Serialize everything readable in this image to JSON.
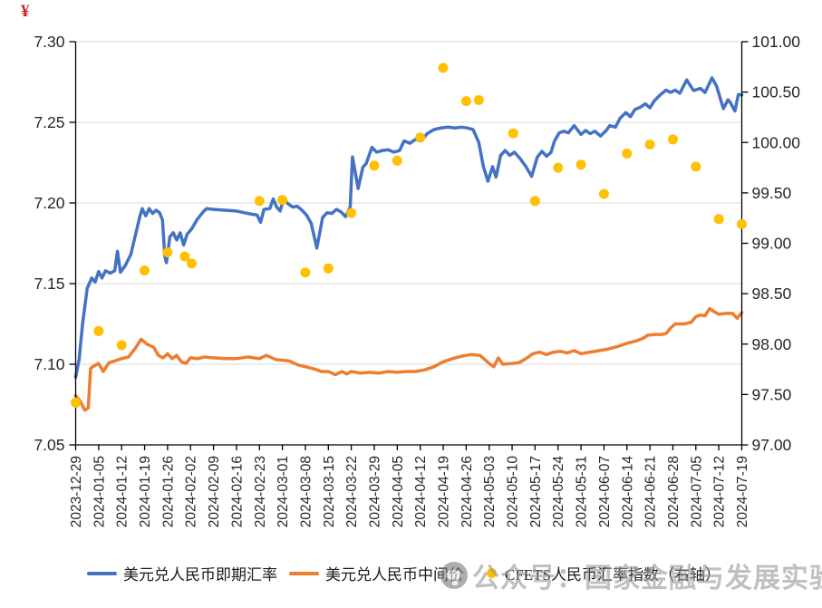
{
  "corner_mark": "¥",
  "watermark": {
    "text": "公众号：国家金融与发展实验室"
  },
  "legend": {
    "items": [
      {
        "label": "美元兑人民币即期汇率",
        "color": "#4472C4",
        "marker": "line"
      },
      {
        "label": "美元兑人民币中间价",
        "color": "#ED7D31",
        "marker": "line"
      },
      {
        "label": "CFETS人民币汇率指数（右轴）",
        "color": "#FFC000",
        "marker": "dot"
      }
    ]
  },
  "chart_data": {
    "type": "line",
    "title": "",
    "grid": true,
    "grid_color": "#d9d9d9",
    "legend_position": "bottom",
    "left_axis": {
      "min": 7.05,
      "max": 7.3,
      "ticks": [
        "7.30",
        "7.25",
        "7.20",
        "7.15",
        "7.10",
        "7.05"
      ]
    },
    "right_axis": {
      "min": 97.0,
      "max": 101.0,
      "ticks": [
        "101.00",
        "100.50",
        "100.00",
        "99.50",
        "99.00",
        "98.50",
        "98.00",
        "97.50",
        "97.00"
      ]
    },
    "x_labels": [
      "2023-12-29",
      "2024-01-05",
      "2024-01-12",
      "2024-01-19",
      "2024-01-26",
      "2024-02-02",
      "2024-02-09",
      "2024-02-16",
      "2024-02-23",
      "2024-03-01",
      "2024-03-08",
      "2024-03-15",
      "2024-03-22",
      "2024-03-29",
      "2024-04-05",
      "2024-04-12",
      "2024-04-19",
      "2024-04-26",
      "2024-05-03",
      "2024-05-10",
      "2024-05-17",
      "2024-05-24",
      "2024-05-31",
      "2024-06-07",
      "2024-06-14",
      "2024-06-21",
      "2024-06-28",
      "2024-07-05",
      "2024-07-12",
      "2024-07-19"
    ],
    "series": [
      {
        "name": "美元兑人民币即期汇率",
        "axis": "left",
        "type": "line",
        "color": "#4472C4",
        "points": [
          [
            0,
            7.092
          ],
          [
            0.15,
            7.103
          ],
          [
            0.3,
            7.125
          ],
          [
            0.5,
            7.147
          ],
          [
            0.7,
            7.1535
          ],
          [
            0.85,
            7.151
          ],
          [
            1,
            7.1575
          ],
          [
            1.15,
            7.1535
          ],
          [
            1.3,
            7.158
          ],
          [
            1.5,
            7.1565
          ],
          [
            1.7,
            7.158
          ],
          [
            1.82,
            7.17
          ],
          [
            1.95,
            7.157
          ],
          [
            2.15,
            7.161
          ],
          [
            2.4,
            7.168
          ],
          [
            2.6,
            7.18
          ],
          [
            2.8,
            7.192
          ],
          [
            2.9,
            7.1965
          ],
          [
            3.05,
            7.192
          ],
          [
            3.2,
            7.1965
          ],
          [
            3.35,
            7.1935
          ],
          [
            3.5,
            7.1955
          ],
          [
            3.65,
            7.194
          ],
          [
            3.78,
            7.1895
          ],
          [
            3.88,
            7.167
          ],
          [
            3.95,
            7.163
          ],
          [
            4.1,
            7.179
          ],
          [
            4.25,
            7.1815
          ],
          [
            4.4,
            7.177
          ],
          [
            4.55,
            7.1815
          ],
          [
            4.7,
            7.174
          ],
          [
            4.85,
            7.1805
          ],
          [
            5.05,
            7.184
          ],
          [
            5.3,
            7.19
          ],
          [
            5.55,
            7.1945
          ],
          [
            5.7,
            7.1965
          ],
          [
            6,
            7.196
          ],
          [
            6.5,
            7.1955
          ],
          [
            7,
            7.195
          ],
          [
            7.5,
            7.1935
          ],
          [
            7.9,
            7.1925
          ],
          [
            8.05,
            7.188
          ],
          [
            8.2,
            7.196
          ],
          [
            8.45,
            7.1965
          ],
          [
            8.6,
            7.2025
          ],
          [
            8.75,
            7.1975
          ],
          [
            8.9,
            7.195
          ],
          [
            9.05,
            7.2025
          ],
          [
            9.25,
            7.1995
          ],
          [
            9.45,
            7.1975
          ],
          [
            9.65,
            7.198
          ],
          [
            9.85,
            7.1955
          ],
          [
            10.05,
            7.1925
          ],
          [
            10.25,
            7.1875
          ],
          [
            10.5,
            7.172
          ],
          [
            10.75,
            7.191
          ],
          [
            10.95,
            7.194
          ],
          [
            11.15,
            7.1935
          ],
          [
            11.35,
            7.196
          ],
          [
            11.55,
            7.1945
          ],
          [
            11.75,
            7.1915
          ],
          [
            11.95,
            7.1975
          ],
          [
            12.05,
            7.2285
          ],
          [
            12.3,
            7.209
          ],
          [
            12.5,
            7.222
          ],
          [
            12.65,
            7.2245
          ],
          [
            12.9,
            7.2345
          ],
          [
            13.1,
            7.2315
          ],
          [
            13.35,
            7.2325
          ],
          [
            13.6,
            7.233
          ],
          [
            13.85,
            7.2315
          ],
          [
            14.1,
            7.2325
          ],
          [
            14.3,
            7.2385
          ],
          [
            14.55,
            7.237
          ],
          [
            14.8,
            7.2395
          ],
          [
            15.05,
            7.2385
          ],
          [
            15.3,
            7.243
          ],
          [
            15.6,
            7.2455
          ],
          [
            15.9,
            7.2465
          ],
          [
            16.2,
            7.247
          ],
          [
            16.5,
            7.2465
          ],
          [
            16.8,
            7.247
          ],
          [
            17.05,
            7.2465
          ],
          [
            17.3,
            7.2455
          ],
          [
            17.55,
            7.2375
          ],
          [
            17.75,
            7.2225
          ],
          [
            17.95,
            7.2135
          ],
          [
            18.15,
            7.2225
          ],
          [
            18.3,
            7.216
          ],
          [
            18.5,
            7.2295
          ],
          [
            18.7,
            7.2325
          ],
          [
            18.9,
            7.2295
          ],
          [
            19.1,
            7.2315
          ],
          [
            19.35,
            7.2275
          ],
          [
            19.6,
            7.2225
          ],
          [
            19.85,
            7.2165
          ],
          [
            20.1,
            7.2285
          ],
          [
            20.3,
            7.232
          ],
          [
            20.5,
            7.229
          ],
          [
            20.7,
            7.2315
          ],
          [
            20.85,
            7.2385
          ],
          [
            21.05,
            7.2435
          ],
          [
            21.25,
            7.2445
          ],
          [
            21.45,
            7.2435
          ],
          [
            21.7,
            7.248
          ],
          [
            22,
            7.2425
          ],
          [
            22.2,
            7.245
          ],
          [
            22.4,
            7.243
          ],
          [
            22.6,
            7.2445
          ],
          [
            22.85,
            7.2415
          ],
          [
            23.1,
            7.245
          ],
          [
            23.25,
            7.248
          ],
          [
            23.5,
            7.247
          ],
          [
            23.7,
            7.2525
          ],
          [
            23.95,
            7.256
          ],
          [
            24.15,
            7.2535
          ],
          [
            24.35,
            7.258
          ],
          [
            24.6,
            7.2595
          ],
          [
            24.8,
            7.2615
          ],
          [
            25,
            7.259
          ],
          [
            25.2,
            7.2635
          ],
          [
            25.45,
            7.267
          ],
          [
            25.7,
            7.27
          ],
          [
            25.9,
            7.2685
          ],
          [
            26.1,
            7.27
          ],
          [
            26.3,
            7.268
          ],
          [
            26.6,
            7.2763
          ],
          [
            26.9,
            7.2697
          ],
          [
            27.2,
            7.271
          ],
          [
            27.4,
            7.2685
          ],
          [
            27.7,
            7.2775
          ],
          [
            27.9,
            7.2725
          ],
          [
            28.2,
            7.2585
          ],
          [
            28.4,
            7.264
          ],
          [
            28.5,
            7.2623
          ],
          [
            28.7,
            7.257
          ],
          [
            28.85,
            7.2672
          ],
          [
            29,
            7.267
          ]
        ]
      },
      {
        "name": "美元兑人民币中间价",
        "axis": "left",
        "type": "line",
        "color": "#ED7D31",
        "points": [
          [
            0,
            7.0805
          ],
          [
            0.2,
            7.077
          ],
          [
            0.4,
            7.0715
          ],
          [
            0.55,
            7.073
          ],
          [
            0.65,
            7.0975
          ],
          [
            0.8,
            7.099
          ],
          [
            1,
            7.1005
          ],
          [
            1.2,
            7.0955
          ],
          [
            1.45,
            7.101
          ],
          [
            1.7,
            7.102
          ],
          [
            2,
            7.1035
          ],
          [
            2.3,
            7.1045
          ],
          [
            2.6,
            7.11
          ],
          [
            2.85,
            7.1155
          ],
          [
            3.1,
            7.1125
          ],
          [
            3.4,
            7.1105
          ],
          [
            3.6,
            7.1055
          ],
          [
            3.8,
            7.104
          ],
          [
            4,
            7.1065
          ],
          [
            4.2,
            7.1035
          ],
          [
            4.4,
            7.1055
          ],
          [
            4.6,
            7.1015
          ],
          [
            4.8,
            7.1005
          ],
          [
            5,
            7.104
          ],
          [
            5.3,
            7.1035
          ],
          [
            5.6,
            7.1045
          ],
          [
            6,
            7.104
          ],
          [
            6.5,
            7.1035
          ],
          [
            7,
            7.1035
          ],
          [
            7.5,
            7.1045
          ],
          [
            8,
            7.1035
          ],
          [
            8.3,
            7.1055
          ],
          [
            8.7,
            7.103
          ],
          [
            9,
            7.1025
          ],
          [
            9.3,
            7.102
          ],
          [
            9.7,
            7.0995
          ],
          [
            10,
            7.0985
          ],
          [
            10.4,
            7.097
          ],
          [
            10.7,
            7.0955
          ],
          [
            11,
            7.0955
          ],
          [
            11.3,
            7.0935
          ],
          [
            11.6,
            7.0955
          ],
          [
            11.8,
            7.094
          ],
          [
            12,
            7.0955
          ],
          [
            12.4,
            7.0945
          ],
          [
            12.8,
            7.095
          ],
          [
            13.2,
            7.0945
          ],
          [
            13.6,
            7.0955
          ],
          [
            14,
            7.095
          ],
          [
            14.4,
            7.0955
          ],
          [
            14.8,
            7.0955
          ],
          [
            15.2,
            7.0965
          ],
          [
            15.6,
            7.0985
          ],
          [
            16,
            7.1015
          ],
          [
            16.4,
            7.1035
          ],
          [
            16.8,
            7.105
          ],
          [
            17.2,
            7.106
          ],
          [
            17.6,
            7.1055
          ],
          [
            18,
            7.1005
          ],
          [
            18.2,
            7.0985
          ],
          [
            18.4,
            7.104
          ],
          [
            18.6,
            7.1
          ],
          [
            19,
            7.1005
          ],
          [
            19.3,
            7.101
          ],
          [
            19.6,
            7.1035
          ],
          [
            19.9,
            7.1065
          ],
          [
            20.2,
            7.1075
          ],
          [
            20.5,
            7.106
          ],
          [
            20.8,
            7.1075
          ],
          [
            21.1,
            7.108
          ],
          [
            21.4,
            7.107
          ],
          [
            21.7,
            7.1085
          ],
          [
            22,
            7.1065
          ],
          [
            22.4,
            7.1075
          ],
          [
            22.8,
            7.1085
          ],
          [
            23.2,
            7.1095
          ],
          [
            23.6,
            7.111
          ],
          [
            24,
            7.113
          ],
          [
            24.4,
            7.1145
          ],
          [
            24.7,
            7.116
          ],
          [
            24.9,
            7.118
          ],
          [
            25.2,
            7.1185
          ],
          [
            25.5,
            7.1185
          ],
          [
            25.7,
            7.119
          ],
          [
            25.9,
            7.1225
          ],
          [
            26.1,
            7.125
          ],
          [
            26.5,
            7.125
          ],
          [
            26.8,
            7.126
          ],
          [
            27,
            7.1295
          ],
          [
            27.2,
            7.1305
          ],
          [
            27.4,
            7.13
          ],
          [
            27.6,
            7.1345
          ],
          [
            27.8,
            7.1325
          ],
          [
            28,
            7.131
          ],
          [
            28.3,
            7.1315
          ],
          [
            28.6,
            7.1315
          ],
          [
            28.8,
            7.1285
          ],
          [
            29,
            7.132
          ]
        ]
      },
      {
        "name": "CFETS人民币汇率指数（右轴）",
        "axis": "right",
        "type": "scatter",
        "color": "#FFC000",
        "points": [
          [
            0,
            97.42
          ],
          [
            1,
            98.13
          ],
          [
            2,
            97.99
          ],
          [
            3,
            98.73
          ],
          [
            4,
            98.91
          ],
          [
            4.75,
            98.87
          ],
          [
            5.05,
            98.8
          ],
          [
            8,
            99.42
          ],
          [
            9,
            99.43
          ],
          [
            10,
            98.71
          ],
          [
            11,
            98.75
          ],
          [
            12,
            99.3
          ],
          [
            13,
            99.77
          ],
          [
            14,
            99.82
          ],
          [
            15,
            100.05
          ],
          [
            16,
            100.74
          ],
          [
            17,
            100.41
          ],
          [
            17.55,
            100.42
          ],
          [
            19.05,
            100.09
          ],
          [
            20,
            99.42
          ],
          [
            21,
            99.75
          ],
          [
            22,
            99.78
          ],
          [
            23,
            99.49
          ],
          [
            24,
            99.89
          ],
          [
            25,
            99.98
          ],
          [
            26,
            100.03
          ],
          [
            27,
            99.76
          ],
          [
            28,
            99.24
          ],
          [
            29,
            99.19
          ]
        ]
      }
    ]
  }
}
